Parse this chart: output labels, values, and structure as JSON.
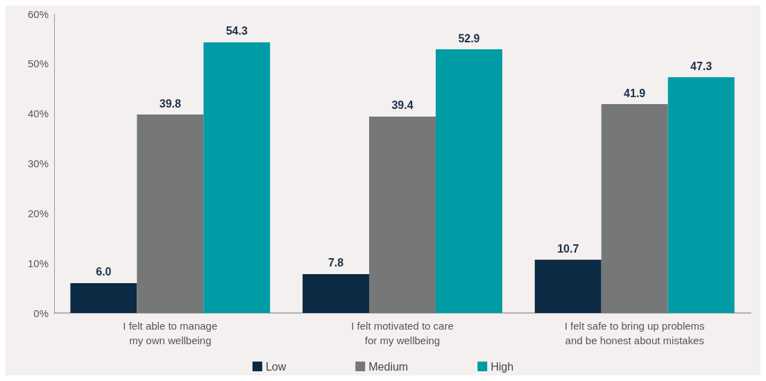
{
  "chart_data": {
    "type": "bar",
    "categories": [
      "I felt able to manage\nmy own wellbeing",
      "I felt motivated to care\nfor my wellbeing",
      "I felt safe to bring up problems\nand be honest about mistakes"
    ],
    "series": [
      {
        "name": "Low",
        "color": "#0b2a44",
        "values": [
          6.0,
          7.8,
          10.7
        ],
        "value_labels": [
          "6.0",
          "7.8",
          "10.7"
        ]
      },
      {
        "name": "Medium",
        "color": "#757877",
        "values": [
          39.8,
          39.4,
          41.9
        ],
        "value_labels": [
          "39.8",
          "39.4",
          "41.9"
        ]
      },
      {
        "name": "High",
        "color": "#009ca6",
        "values": [
          54.3,
          52.9,
          47.3
        ],
        "value_labels": [
          "54.3",
          "52.9",
          "47.3"
        ]
      }
    ],
    "ylim": [
      0,
      60
    ],
    "yticks": [
      {
        "value": 0,
        "label": "0%"
      },
      {
        "value": 10,
        "label": "10%"
      },
      {
        "value": 20,
        "label": "20%"
      },
      {
        "value": 30,
        "label": "30%"
      },
      {
        "value": 40,
        "label": "40%"
      },
      {
        "value": 50,
        "label": "50%"
      },
      {
        "value": 60,
        "label": "60%"
      }
    ],
    "grid": false,
    "legend": "bottom"
  }
}
